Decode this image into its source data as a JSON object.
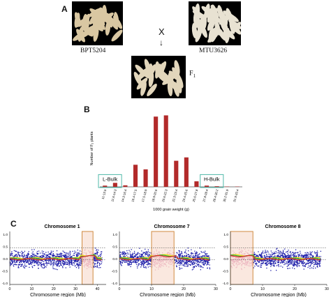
{
  "panels": {
    "a": {
      "letter": "A"
    },
    "b": {
      "letter": "B"
    },
    "c": {
      "letter": "C"
    }
  },
  "photos": {
    "parent1": {
      "caption": "BPT5204"
    },
    "parent2": {
      "caption": "MTU3626"
    },
    "f1": {
      "caption": "F",
      "subscript": "1"
    },
    "cross_symbol": "X",
    "arrow": "↓"
  },
  "chart_data": [
    {
      "type": "bar",
      "categories": [
        "11-13.5",
        "11.6-14.3",
        "14.3-16.4",
        "16.4-17.5",
        "17.5-18.9",
        "18.9-20.6",
        "20.6-22.3",
        "22.3-23.4",
        "23.4-25.6",
        "25.6-27.8",
        "27.8-28.4",
        "28.4-30.2",
        "30.2-31.9",
        "31.9-33.4"
      ],
      "values": [
        4,
        13,
        5,
        72,
        57,
        229,
        233,
        85,
        96,
        18,
        4,
        2,
        1,
        1
      ],
      "ylim": [
        0,
        250
      ],
      "ylabel": "Number of F₂ plants",
      "xlabel": "1000 grain weight (g)",
      "color": "#b22a2a",
      "boxes": [
        {
          "label": "L-Bulk",
          "from_index": 0,
          "to_index": 1
        },
        {
          "label": "H-Bulk",
          "from_index": 10,
          "to_index": 11
        }
      ]
    },
    {
      "type": "scatter",
      "title": "Chromosome 1",
      "xlabel": "Chromosome region (Mb)",
      "xlim": [
        0,
        44
      ],
      "xticks": [
        0,
        10,
        20,
        30,
        40
      ],
      "ylim": [
        -1.0,
        1.0
      ],
      "yticks": [
        "-1.0",
        "-0.5",
        "0.0",
        "0.5",
        "1.0"
      ],
      "threshold_lines": [
        0.45,
        -0.05
      ],
      "highlight_region_mb": [
        33,
        38
      ],
      "point_color": "#1a1aa8",
      "highlight_point_color": "#e8a8c8",
      "line_colors": [
        "#f0e020",
        "#30b030",
        "#e03030"
      ]
    },
    {
      "type": "scatter",
      "title": "Chromosome 7",
      "xlabel": "Chromosome region (Mb)",
      "xlim": [
        0,
        30
      ],
      "xticks": [
        0,
        10,
        20,
        30
      ],
      "ylim": [
        -1.0,
        1.0
      ],
      "yticks": [
        "-1.0",
        "-0.5",
        "0.0",
        "0.5",
        "1.0"
      ],
      "threshold_lines": [
        0.45,
        -0.05
      ],
      "highlight_region_mb": [
        10,
        17
      ],
      "point_color": "#1a1aa8",
      "highlight_point_color": "#e8a8c8",
      "line_colors": [
        "#f0e020",
        "#30b030",
        "#e03030"
      ]
    },
    {
      "type": "scatter",
      "title": "Chromosome 8",
      "xlabel": "Chromosome region (Mb)",
      "xlim": [
        0,
        30
      ],
      "xticks": [
        0,
        10,
        20,
        30
      ],
      "ylim": [
        -1.0,
        1.0
      ],
      "yticks": [
        "-1.0",
        "-0.5",
        "0.0",
        "0.5",
        "1.0"
      ],
      "threshold_lines": [
        0.45,
        -0.05
      ],
      "highlight_region_mb": [
        0,
        7
      ],
      "point_color": "#1a1aa8",
      "highlight_point_color": "#e8a8c8",
      "line_colors": [
        "#f0e020",
        "#30b030",
        "#e03030"
      ]
    }
  ]
}
